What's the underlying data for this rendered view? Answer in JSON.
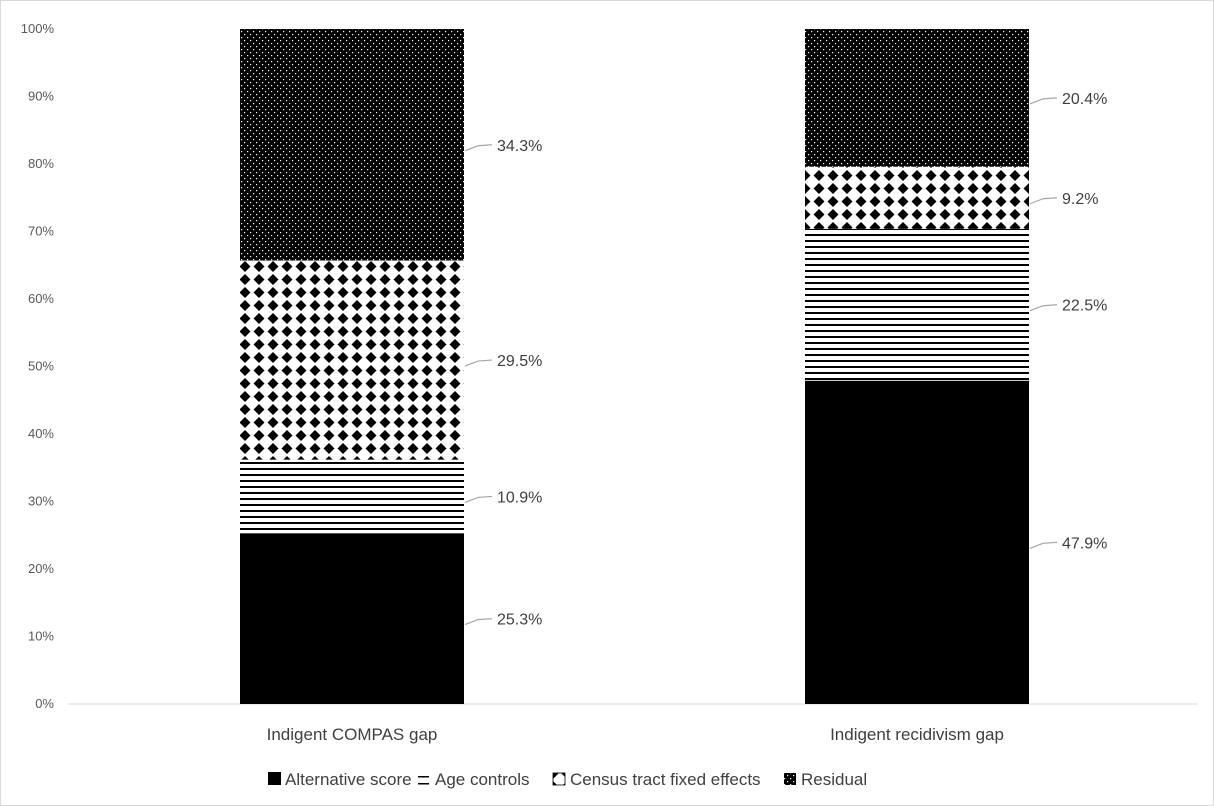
{
  "chart_data": {
    "type": "bar",
    "stacked": true,
    "categories": [
      "Indigent COMPAS gap",
      "Indigent recidivism gap"
    ],
    "series": [
      {
        "name": "Alternative score",
        "values": [
          25.3,
          47.9
        ],
        "labels": [
          "25.3%",
          "47.9%"
        ]
      },
      {
        "name": "Age controls",
        "values": [
          10.9,
          22.5
        ],
        "labels": [
          "10.9%",
          "22.5%"
        ]
      },
      {
        "name": "Census tract fixed effects",
        "values": [
          29.5,
          9.2
        ],
        "labels": [
          "29.5%",
          "9.2%"
        ]
      },
      {
        "name": "Residual",
        "values": [
          34.3,
          20.4
        ],
        "labels": [
          "34.3%",
          "20.4%"
        ]
      }
    ],
    "ylim": [
      0,
      100
    ],
    "yticks": [
      "0%",
      "10%",
      "20%",
      "30%",
      "40%",
      "50%",
      "60%",
      "70%",
      "80%",
      "90%",
      "100%"
    ],
    "legend_position": "bottom",
    "grid": false,
    "colors": {
      "mark": "#000000",
      "text": "#404040",
      "axis": "#d9d9d9"
    }
  }
}
